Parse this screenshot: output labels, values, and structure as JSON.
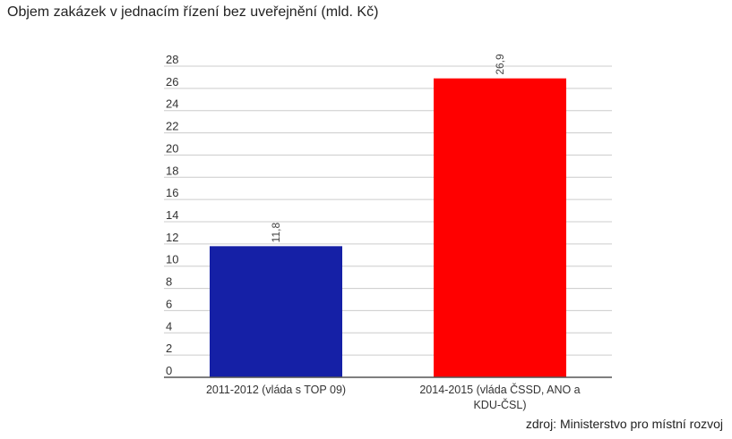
{
  "chart_data": {
    "type": "bar",
    "title": "Objem zakázek v jednacím řízení bez uveřejnění (mld. Kč)",
    "categories": [
      [
        "2011-2012 (vláda s TOP 09)"
      ],
      [
        "2014-2015 (vláda ČSSD, ANO a",
        "KDU-ČSL)"
      ]
    ],
    "values": [
      11.8,
      26.9
    ],
    "value_labels": [
      "11,8",
      "26,9"
    ],
    "bar_colors": [
      "#1520A6",
      "#FF0000"
    ],
    "ylim": [
      0,
      28
    ],
    "yticks": [
      0,
      2,
      4,
      6,
      8,
      10,
      12,
      14,
      16,
      18,
      20,
      22,
      24,
      26,
      28
    ],
    "xlabel": "",
    "ylabel": "",
    "grid": true,
    "legend": "none"
  },
  "source_note": "zdroj: Ministerstvo pro místní rozvoj"
}
